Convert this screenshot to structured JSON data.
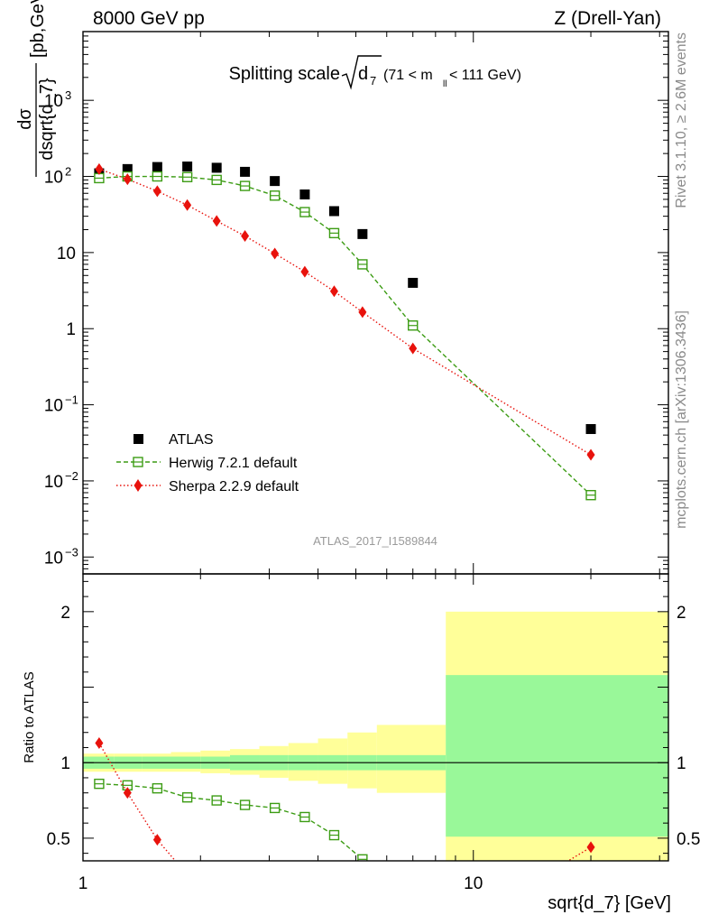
{
  "header": {
    "left": "8000 GeV pp",
    "right": "Z (Drell-Yan)"
  },
  "side_labels": {
    "rivet": "Rivet 3.1.10, ≥ 2.6M events",
    "mcplots": "mcplots.cern.ch [arXiv:1306.3436]"
  },
  "chart_data": [
    {
      "type": "scatter",
      "panel": "main",
      "title_prefix": "Splitting scale",
      "title_symbol": "d",
      "title_symbol_sub": "7",
      "title_range_prefix": "(71 < m",
      "title_range_sub": "ll",
      "title_range_suffix": " < 111 GeV)",
      "ylabel_top": "dσ",
      "ylabel_bottom": "dsqrt{d_7}",
      "ylabel_units": "[pb,GeV",
      "ylabel_units_exp": "-1",
      "ylabel_units_close": "]",
      "xlabel": "sqrt{d_7} [GeV]",
      "x_scale": "log",
      "y_scale": "log",
      "xlim": [
        1,
        31.6
      ],
      "ylim": [
        0.0006,
        8000
      ],
      "ytick_labels": [
        {
          "base": "10",
          "exp": "−3",
          "value": 0.001
        },
        {
          "base": "10",
          "exp": "−2",
          "value": 0.01
        },
        {
          "base": "10",
          "exp": "−1",
          "value": 0.1
        },
        {
          "base": "1",
          "exp": "",
          "value": 1
        },
        {
          "base": "10",
          "exp": "",
          "value": 10
        },
        {
          "base": "10",
          "exp": "2",
          "value": 100
        },
        {
          "base": "10",
          "exp": "3",
          "value": 1000
        }
      ],
      "legend": [
        "ATLAS",
        "Herwig 7.2.1 default",
        "Sherpa 2.2.9 default"
      ],
      "legend_position": "lower-left",
      "watermark": "ATLAS_2017_I1589844",
      "series": [
        {
          "name": "ATLAS",
          "marker": "square",
          "color": "#000000",
          "x": [
            1.1,
            1.3,
            1.55,
            1.85,
            2.2,
            2.6,
            3.1,
            3.7,
            4.4,
            5.2,
            7.0,
            20.0
          ],
          "y": [
            110,
            125,
            133,
            135,
            130,
            115,
            87,
            58,
            35,
            17.5,
            4.0,
            0.048
          ]
        },
        {
          "name": "Herwig 7.2.1 default",
          "marker": "open-square",
          "line": "dashed",
          "color": "#3c9c14",
          "x": [
            1.1,
            1.3,
            1.55,
            1.85,
            2.2,
            2.6,
            3.1,
            3.7,
            4.4,
            5.2,
            7.0,
            20.0
          ],
          "y": [
            95,
            100,
            100,
            98,
            90,
            75,
            56,
            34,
            18,
            7.0,
            1.1,
            0.0065
          ]
        },
        {
          "name": "Sherpa 2.2.9 default",
          "marker": "diamond",
          "line": "dotted",
          "color": "#e8120c",
          "x": [
            1.1,
            1.3,
            1.55,
            1.85,
            2.2,
            2.6,
            3.1,
            3.7,
            4.4,
            5.2,
            7.0,
            20.0
          ],
          "y": [
            125,
            92,
            64,
            42,
            26,
            16.5,
            9.7,
            5.6,
            3.1,
            1.65,
            0.55,
            0.022
          ]
        }
      ]
    },
    {
      "type": "scatter",
      "panel": "ratio",
      "ylabel": "Ratio to ATLAS",
      "x_scale": "log",
      "xlim": [
        1,
        31.6
      ],
      "ylim": [
        0.35,
        2.25
      ],
      "xtick_labels": [
        "1",
        "10"
      ],
      "ytick_labels": [
        "0.5",
        "1",
        "2"
      ],
      "reference": 1.0,
      "bands": {
        "edges": [
          1.0,
          1.2,
          1.42,
          1.68,
          2.0,
          2.38,
          2.83,
          3.36,
          4.0,
          4.76,
          5.66,
          8.5,
          31.6
        ],
        "inner_lo": [
          0.96,
          0.96,
          0.96,
          0.96,
          0.96,
          0.95,
          0.95,
          0.95,
          0.95,
          0.95,
          0.95,
          0.51
        ],
        "inner_hi": [
          1.04,
          1.04,
          1.04,
          1.04,
          1.04,
          1.05,
          1.05,
          1.05,
          1.05,
          1.05,
          1.05,
          1.58
        ],
        "outer_lo": [
          0.94,
          0.94,
          0.94,
          0.94,
          0.93,
          0.92,
          0.9,
          0.88,
          0.86,
          0.83,
          0.8,
          0.35
        ],
        "outer_hi": [
          1.06,
          1.06,
          1.06,
          1.07,
          1.08,
          1.09,
          1.11,
          1.13,
          1.16,
          1.2,
          1.25,
          2.0
        ],
        "inner_color": "#99f899",
        "outer_color": "#ffff99"
      },
      "series": [
        {
          "name": "Herwig 7.2.1 default",
          "x": [
            1.1,
            1.3,
            1.55,
            1.85,
            2.2,
            2.6,
            3.1,
            3.7,
            4.4,
            5.2
          ],
          "y": [
            0.86,
            0.85,
            0.83,
            0.77,
            0.75,
            0.72,
            0.7,
            0.64,
            0.52,
            0.36
          ]
        },
        {
          "name": "Sherpa 2.2.9 default",
          "x": [
            1.1,
            1.3,
            1.55,
            1.75,
            17.0,
            20.0
          ],
          "y": [
            1.13,
            0.8,
            0.49,
            0.33,
            0.33,
            0.44
          ]
        }
      ]
    }
  ]
}
